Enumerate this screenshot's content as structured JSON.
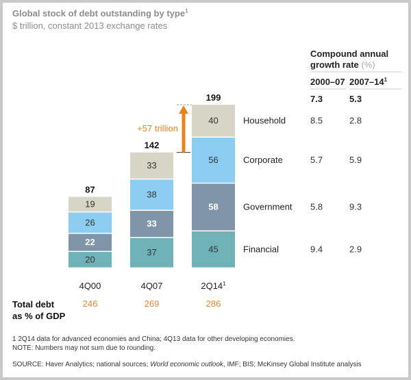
{
  "chart_data": {
    "type": "bar",
    "stacked": true,
    "title": "Global stock of debt outstanding by type",
    "title_footnote": "1",
    "subtitle": "$ trillion, constant 2013 exchange rates",
    "categories": [
      "4Q00",
      "4Q07",
      "2Q14"
    ],
    "category_footnotes": [
      "",
      "",
      "1"
    ],
    "totals": [
      87,
      142,
      199
    ],
    "series": [
      {
        "name": "Financial",
        "color": "#6fb3b9",
        "label_color": "#333333",
        "values": [
          20,
          37,
          45
        ],
        "cagr_2000_07": "9.4",
        "cagr_2007_14": "2.9"
      },
      {
        "name": "Government",
        "color": "#8195a8",
        "label_color": "#ffffff",
        "values": [
          22,
          33,
          58
        ],
        "cagr_2000_07": "5.8",
        "cagr_2007_14": "9.3"
      },
      {
        "name": "Corporate",
        "color": "#8dcdf2",
        "label_color": "#333333",
        "values": [
          26,
          38,
          56
        ],
        "cagr_2000_07": "5.7",
        "cagr_2007_14": "5.9"
      },
      {
        "name": "Household",
        "color": "#d7d5c5",
        "label_color": "#333333",
        "values": [
          19,
          33,
          40
        ],
        "cagr_2000_07": "8.5",
        "cagr_2007_14": "2.8"
      }
    ],
    "annotation": "+57 trillion",
    "annotation_color": "#e8841e",
    "ylim": [
      0,
      199
    ],
    "growth_table": {
      "header_line1": "Compound annual",
      "header_line2": "growth rate",
      "header_unit": "(%)",
      "periods": [
        "2000–07",
        "2007–14"
      ],
      "period_footnotes": [
        "",
        "1"
      ],
      "totals": [
        "7.3",
        "5.3"
      ]
    },
    "gdp_label_line1": "Total debt",
    "gdp_label_line2": "as % of GDP",
    "gdp_values": [
      "246",
      "269",
      "286"
    ]
  },
  "footnotes": {
    "note1": "1  2Q14 data for advanced economies and China; 4Q13 data for other developing economies.",
    "note2": "NOTE: Numbers may not sum due to rounding.",
    "source_prefix": "SOURCE:  Haver Analytics; national sources; ",
    "source_italic": "World economic outlook",
    "source_suffix": ", IMF; BIS; McKinsey Global Institute analysis"
  }
}
